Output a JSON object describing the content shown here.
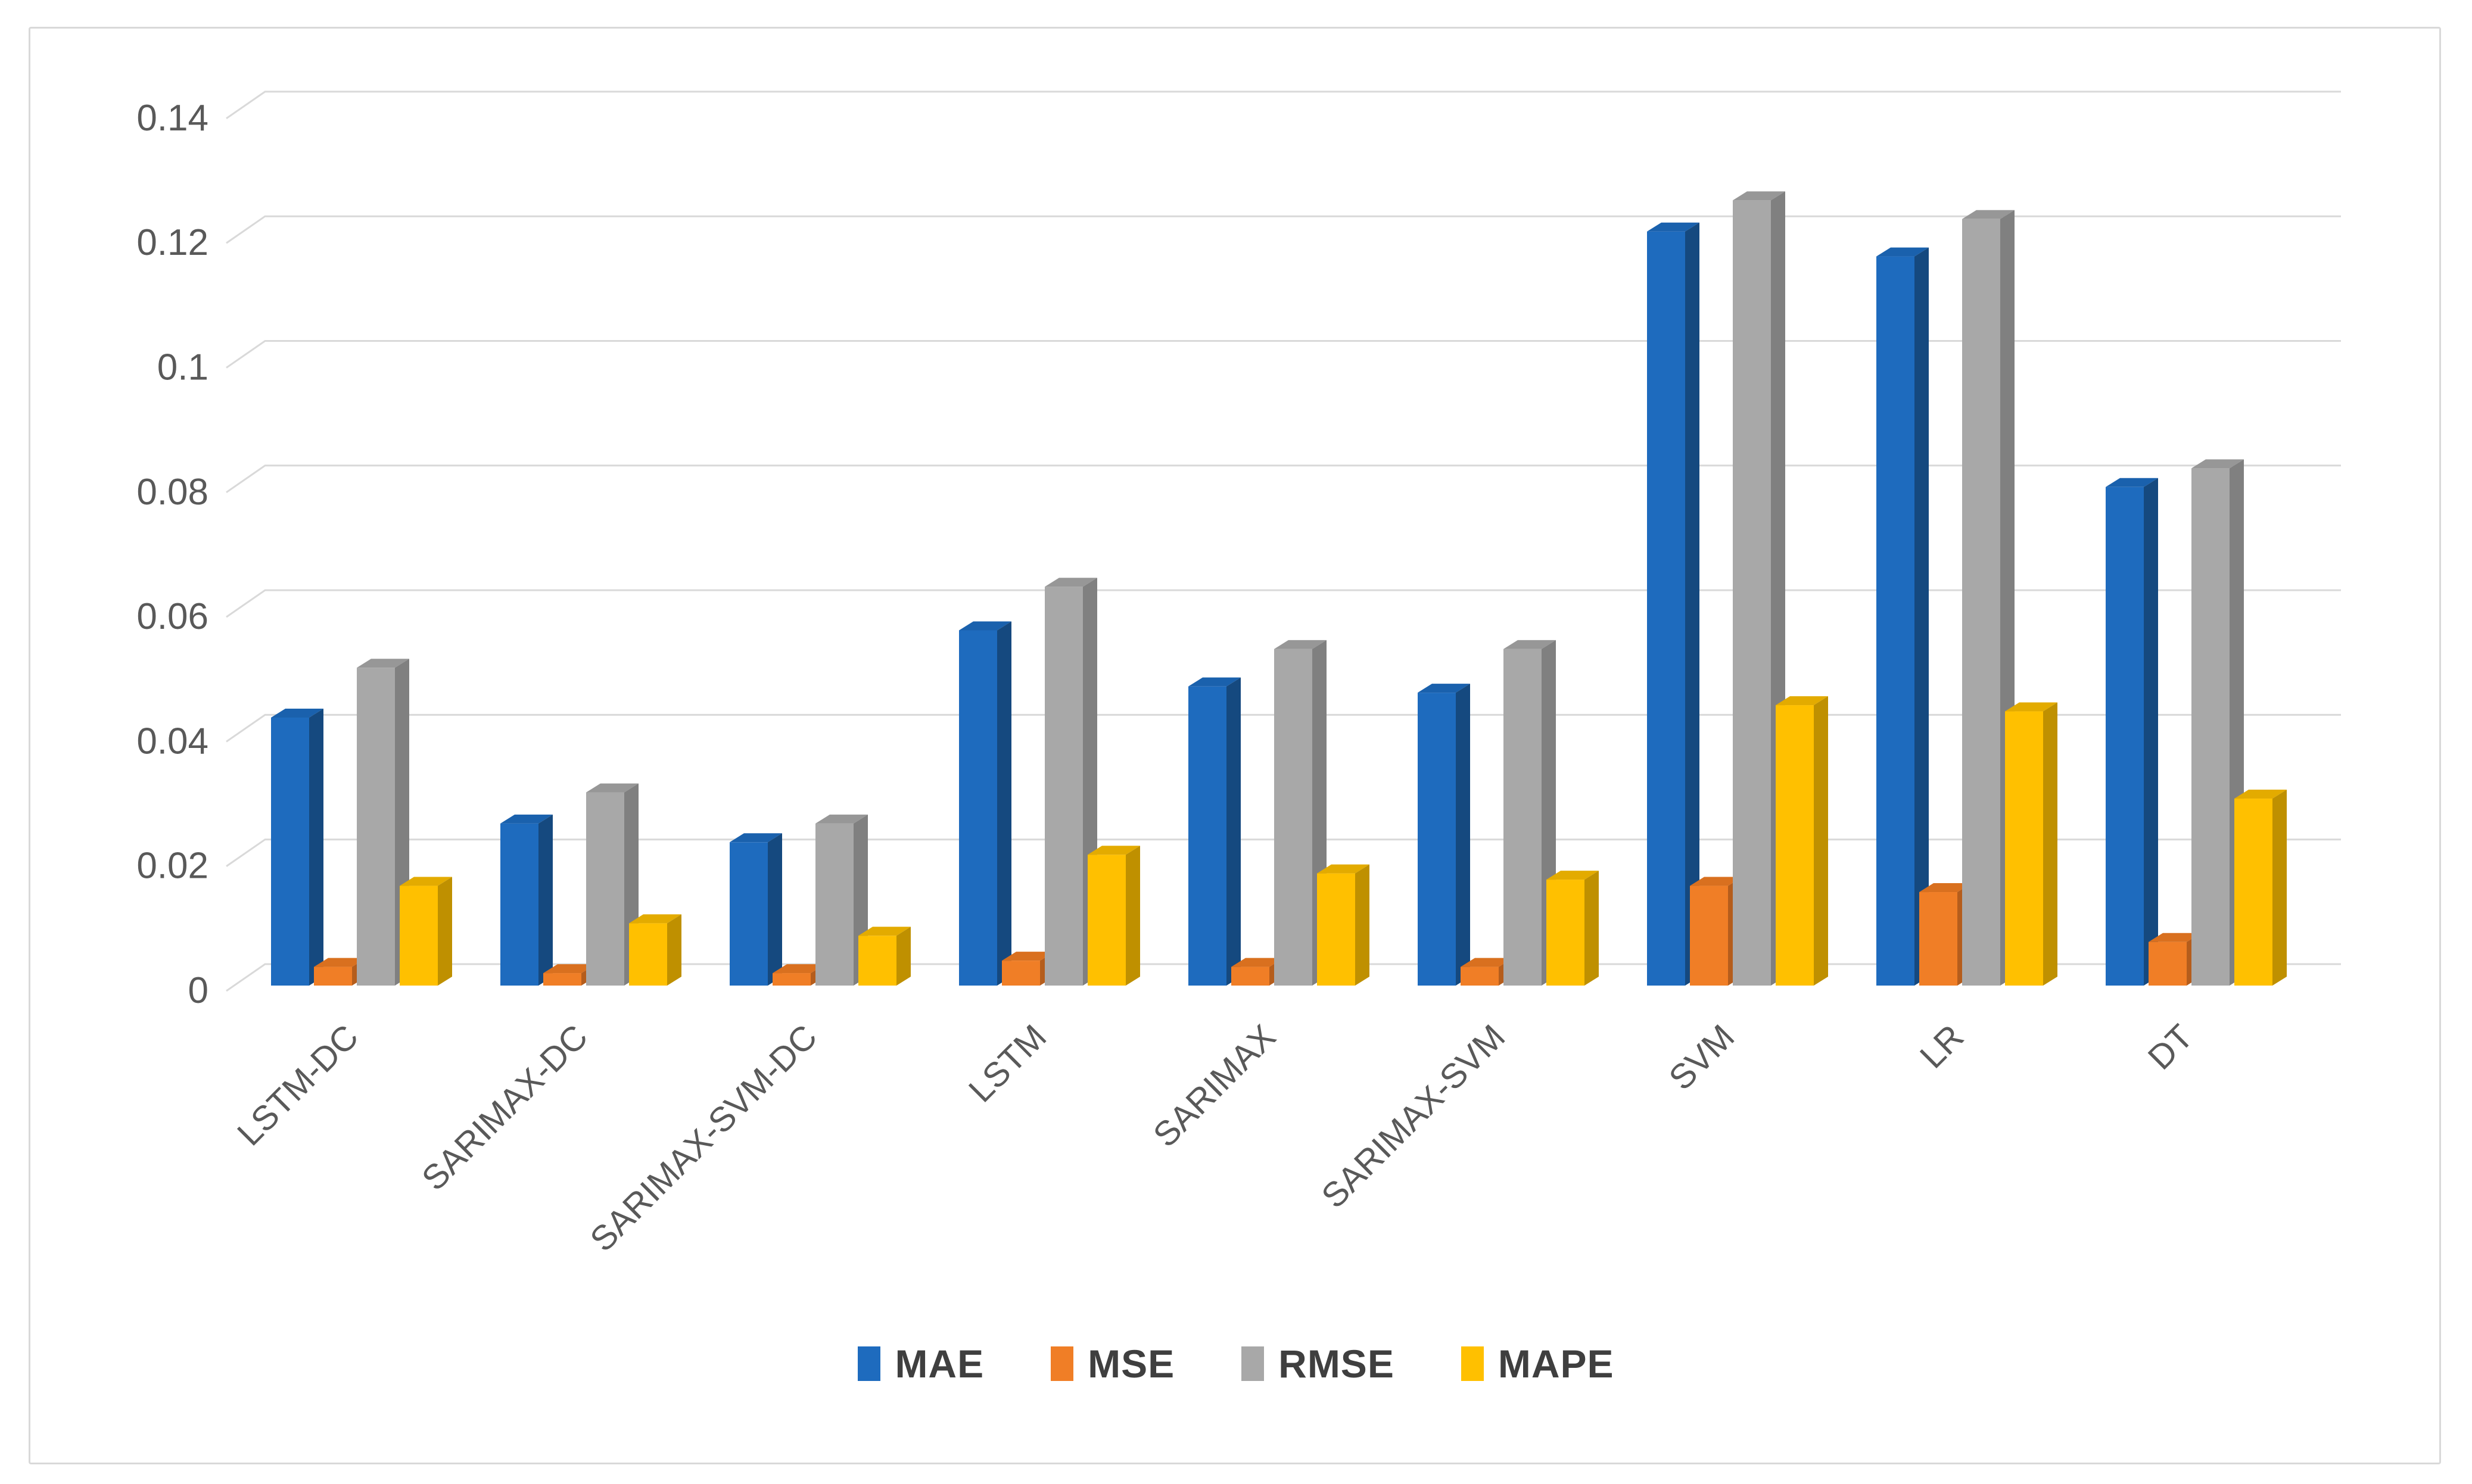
{
  "figure": {
    "background": "#ffffff",
    "border_color": "#d9d9d9"
  },
  "chart_data": {
    "type": "bar",
    "variant": "3d-clustered-column",
    "title": "",
    "xlabel": "",
    "ylabel": "",
    "categories": [
      "LSTM-DC",
      "SARIMAX-DC",
      "SARIMAX-SVM-DC",
      "LSTM",
      "SARIMAX",
      "SARIMAX-SVM",
      "SVM",
      "LR",
      "DT"
    ],
    "series": [
      {
        "name": "MAE",
        "color": "#1e6bbe",
        "top_color": "#1a61ad",
        "side_color": "#15497f",
        "values": [
          0.043,
          0.026,
          0.023,
          0.057,
          0.048,
          0.047,
          0.121,
          0.117,
          0.08
        ]
      },
      {
        "name": "MSE",
        "color": "#f07e26",
        "top_color": "#d9701f",
        "side_color": "#b55d1c",
        "values": [
          0.003,
          0.002,
          0.002,
          0.004,
          0.003,
          0.003,
          0.016,
          0.015,
          0.007
        ]
      },
      {
        "name": "RMSE",
        "color": "#a8a8a8",
        "top_color": "#979797",
        "side_color": "#808080",
        "values": [
          0.051,
          0.031,
          0.026,
          0.064,
          0.054,
          0.054,
          0.126,
          0.123,
          0.083
        ]
      },
      {
        "name": "MAPE",
        "color": "#ffc000",
        "top_color": "#e3ab00",
        "side_color": "#bf9000",
        "values": [
          0.016,
          0.01,
          0.008,
          0.021,
          0.018,
          0.017,
          0.045,
          0.044,
          0.03
        ]
      }
    ],
    "ylim": [
      0,
      0.14
    ],
    "ytick_labels": [
      "0",
      "0.02",
      "0.04",
      "0.06",
      "0.08",
      "0.1",
      "0.12",
      "0.14"
    ],
    "grid": true,
    "gridline_color": "#d9d9d9",
    "axis_text_color": "#595959",
    "legend_position": "bottom",
    "legend_text_color": "#3f3f3f"
  }
}
